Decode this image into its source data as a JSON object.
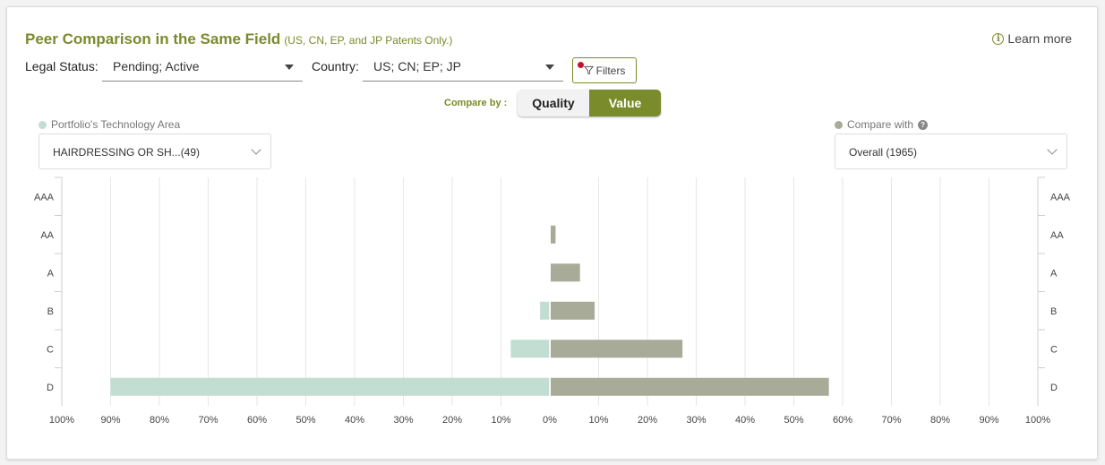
{
  "header": {
    "title": "Peer Comparison in the Same Field",
    "subtitle": "(US, CN, EP, and JP Patents Only.)",
    "learn_more": "Learn more"
  },
  "filters": {
    "legal_status_label": "Legal Status:",
    "legal_status_value": "Pending; Active",
    "country_label": "Country:",
    "country_value": "US; CN; EP; JP",
    "filters_button": "Filters"
  },
  "compare": {
    "label": "Compare by :",
    "options": [
      "Quality",
      "Value"
    ],
    "selected": "Value"
  },
  "left_selector": {
    "legend": "Portfolio's Technology Area",
    "value": "HAIRDRESSING OR SH...(49)"
  },
  "right_selector": {
    "legend": "Compare with",
    "value": "Overall (1965)"
  },
  "colors": {
    "accent": "#7a8b2b",
    "portfolio": "#c2ddd2",
    "overall": "#a9ab99"
  },
  "chart_data": {
    "type": "bar",
    "orientation": "horizontal-diverging",
    "categories": [
      "AAA",
      "AA",
      "A",
      "B",
      "C",
      "D"
    ],
    "series": [
      {
        "name": "Portfolio's Technology Area",
        "side": "left",
        "values": [
          0,
          0,
          0,
          2,
          8,
          90
        ]
      },
      {
        "name": "Overall (1965)",
        "side": "right",
        "values": [
          0,
          1,
          6,
          9,
          27,
          57
        ]
      }
    ],
    "x_ticks": [
      "100%",
      "90%",
      "80%",
      "70%",
      "60%",
      "50%",
      "40%",
      "30%",
      "20%",
      "10%",
      "0%",
      "10%",
      "20%",
      "30%",
      "40%",
      "50%",
      "60%",
      "70%",
      "80%",
      "90%",
      "100%"
    ],
    "xlim": [
      -100,
      100
    ],
    "unit": "%",
    "grid": true
  }
}
